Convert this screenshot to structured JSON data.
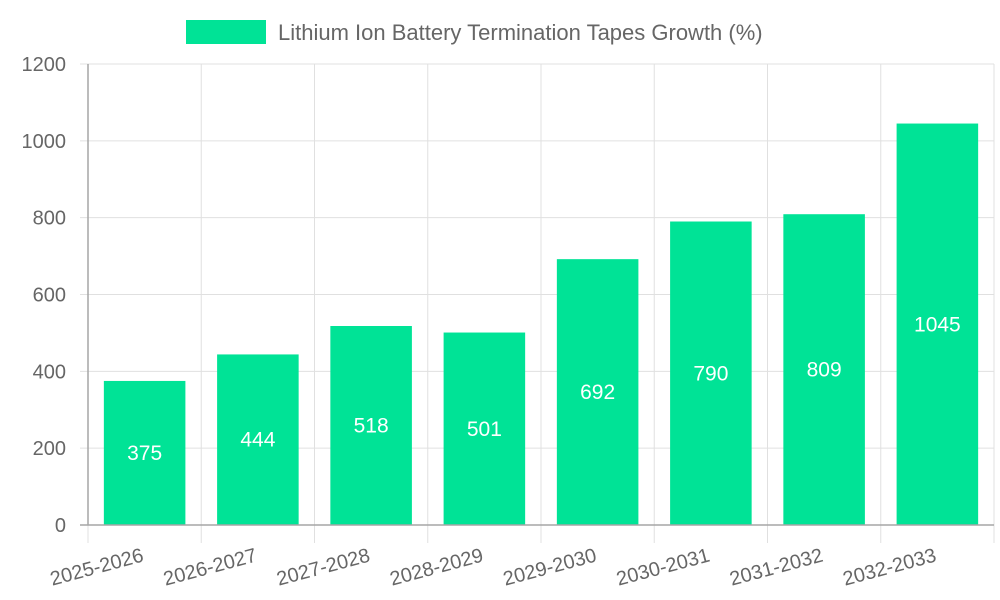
{
  "chart_data": {
    "type": "bar",
    "title": "",
    "legend": {
      "label": "Lithium Ion Battery Termination Tapes Growth (%)",
      "position": "top-center"
    },
    "series_name": "Lithium Ion Battery Termination Tapes Growth (%)",
    "color": "#00e396",
    "categories": [
      "2025-2026",
      "2026-2027",
      "2027-2028",
      "2028-2029",
      "2029-2030",
      "2030-2031",
      "2031-2032",
      "2032-2033"
    ],
    "values": [
      375,
      444,
      518,
      501,
      692,
      790,
      809,
      1045
    ],
    "ylim": [
      0,
      1200
    ],
    "yticks": [
      0,
      200,
      400,
      600,
      800,
      1000,
      1200
    ],
    "grid": true,
    "xlabel": "",
    "ylabel": ""
  }
}
